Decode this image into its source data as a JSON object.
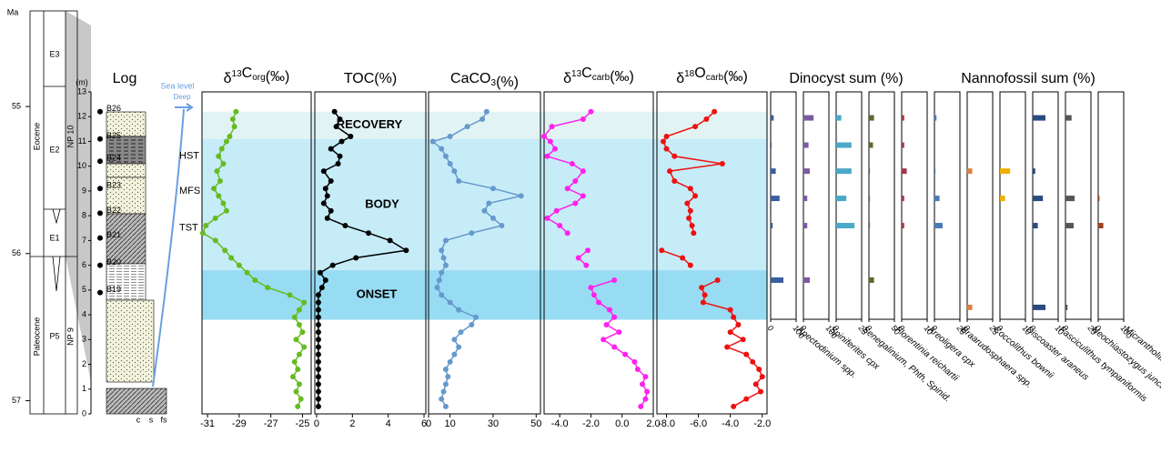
{
  "chart_data": {
    "type": "stratigraphic-composite",
    "ma_label": "Ma",
    "ma_lim": [
      54.35,
      57.09
    ],
    "ma_ticks": [
      55,
      56,
      57
    ],
    "units": {
      "epochs": [
        "Eocene",
        "Paleocene"
      ],
      "zones": [
        "E3",
        "E2",
        "E1",
        "P5"
      ],
      "nannozones": [
        "NP 10",
        "NP 9"
      ]
    },
    "log_title": "Log",
    "depth_label": "(m)",
    "depth_lim": [
      0,
      13
    ],
    "depth_ticks": [
      0,
      1,
      2,
      3,
      4,
      5,
      6,
      7,
      8,
      9,
      10,
      11,
      12,
      13
    ],
    "grain_sizes": [
      "c",
      "s",
      "fs"
    ],
    "samples": [
      {
        "name": "B26",
        "depth": 12.2
      },
      {
        "name": "B25",
        "depth": 11.1
      },
      {
        "name": "B24",
        "depth": 10.2
      },
      {
        "name": "B23",
        "depth": 9.1
      },
      {
        "name": "B22",
        "depth": 8.1
      },
      {
        "name": "B21",
        "depth": 7.1
      },
      {
        "name": "B20",
        "depth": 6.0
      },
      {
        "name": "B19",
        "depth": 4.9
      }
    ],
    "systems_tracts": [
      {
        "name": "HST",
        "depth": 10.4
      },
      {
        "name": "MFS",
        "depth": 9.0
      },
      {
        "name": "TST",
        "depth": 7.5
      }
    ],
    "sea_level_label": "Sea level",
    "deep_label": "Deep",
    "bands": [
      {
        "name": "RECOVERY",
        "range": [
          11.1,
          12.2
        ],
        "color": "#e2f3f4"
      },
      {
        "name": "BODY",
        "range": [
          5.8,
          11.1
        ],
        "color": "#c6ecf8"
      },
      {
        "name": "ONSET",
        "range": [
          3.8,
          5.8
        ],
        "color": "#98dcf3"
      }
    ],
    "depths": [
      12.2,
      11.9,
      11.6,
      11.2,
      11.0,
      10.7,
      10.4,
      10.1,
      9.8,
      9.4,
      9.1,
      8.8,
      8.5,
      8.2,
      7.9,
      7.6,
      7.3,
      7.0,
      6.6,
      6.3,
      6.0,
      5.7,
      5.4,
      5.1,
      4.8,
      4.5,
      4.2,
      3.9,
      3.6,
      3.3,
      3.0,
      2.7,
      2.4,
      2.1,
      1.8,
      1.5,
      1.2,
      0.9,
      0.6,
      0.3
    ],
    "panels": [
      {
        "title": [
          {
            "text": "δ"
          },
          {
            "text": "13",
            "style": "sup"
          },
          {
            "text": "C"
          },
          {
            "text": "org",
            "style": "sub"
          },
          {
            "text": "(‰)"
          }
        ],
        "color": "#66bb22",
        "xlim": [
          -31.35,
          -24.45
        ],
        "xticks": [
          -31,
          -29,
          -27,
          -25
        ],
        "values": [
          -29.2,
          -29.4,
          -29.3,
          -29.6,
          -29.8,
          -30.1,
          -30.3,
          -30.0,
          -30.4,
          -30.2,
          -30.6,
          -30.3,
          -30.0,
          -29.8,
          -30.5,
          -31.1,
          -31.3,
          -30.5,
          -29.9,
          -29.5,
          -29.0,
          -28.5,
          -28.0,
          -27.2,
          -25.8,
          -24.9,
          -25.2,
          -25.5,
          -25.2,
          -25.0,
          -25.4,
          -24.9,
          -25.2,
          -25.5,
          -25.3,
          -25.6,
          -25.2,
          -25.4,
          -25.1,
          -25.3
        ]
      },
      {
        "title": [
          {
            "text": "TOC(%)"
          }
        ],
        "color": "#000000",
        "xlim": [
          -0.1,
          6.1
        ],
        "xticks": [
          0,
          2,
          4,
          6
        ],
        "values": [
          1.0,
          1.3,
          1.1,
          1.9,
          1.4,
          0.8,
          1.3,
          1.2,
          0.4,
          0.8,
          0.5,
          0.6,
          0.4,
          0.8,
          0.6,
          1.6,
          2.9,
          4.1,
          5.0,
          2.2,
          0.9,
          0.2,
          0.5,
          0.3,
          0.1,
          0.1,
          0.1,
          0.1,
          0.1,
          0.1,
          0.1,
          0.1,
          0.1,
          0.1,
          0.1,
          0.1,
          0.1,
          0.1,
          0.1,
          0.1
        ]
      },
      {
        "title": [
          {
            "text": "CaCO"
          },
          {
            "text": "3",
            "style": "sub"
          },
          {
            "text": "(%)"
          }
        ],
        "color": "#6699cc",
        "xlim": [
          0,
          52
        ],
        "xticks": [
          0,
          10,
          30,
          50
        ],
        "values": [
          27,
          25,
          18,
          10,
          2,
          6,
          8,
          10,
          12,
          14,
          30,
          43,
          28,
          26,
          30,
          34,
          20,
          8,
          6,
          7,
          8,
          6,
          5,
          4,
          6,
          10,
          14,
          22,
          20,
          15,
          12,
          14,
          12,
          10,
          8,
          9,
          8,
          7,
          6,
          8
        ]
      },
      {
        "title": [
          {
            "text": "δ"
          },
          {
            "text": "13",
            "style": "sup"
          },
          {
            "text": "C"
          },
          {
            "text": "carb",
            "style": "sub"
          },
          {
            "text": "(‰)"
          }
        ],
        "color": "#ff22ee",
        "xlim": [
          -5,
          2
        ],
        "xticks": [
          {
            "value": -4,
            "label": "-4.0"
          },
          {
            "value": -2,
            "label": "-2.0"
          },
          {
            "value": 0,
            "label": "0.0"
          },
          {
            "value": 2,
            "label": "2.0"
          }
        ],
        "values": [
          -2.0,
          -2.5,
          -4.5,
          -5.0,
          -4.6,
          -4.3,
          -4.8,
          -3.2,
          -2.5,
          -3.0,
          -3.5,
          -2.5,
          -3.0,
          -4.2,
          -4.8,
          -4.0,
          -3.5,
          null,
          -2.2,
          -2.8,
          -2.3,
          null,
          -0.5,
          -2.0,
          -1.8,
          -1.5,
          -0.8,
          -0.5,
          -1.0,
          -0.2,
          -1.2,
          -0.5,
          0.2,
          0.8,
          1.0,
          1.5,
          1.3,
          1.6,
          1.5,
          1.2
        ]
      },
      {
        "title": [
          {
            "text": "δ"
          },
          {
            "text": "18",
            "style": "sup"
          },
          {
            "text": "O"
          },
          {
            "text": "carb",
            "style": "sub"
          },
          {
            "text": "(‰)"
          }
        ],
        "color": "#ee1111",
        "xlim": [
          -8.6,
          -1.7
        ],
        "xticks": [
          {
            "value": -8,
            "label": "-8.0"
          },
          {
            "value": -6,
            "label": "-6.0"
          },
          {
            "value": -4,
            "label": "-4.0"
          },
          {
            "value": -2,
            "label": "-2.0"
          }
        ],
        "values": [
          -5.0,
          -5.5,
          -6.2,
          -8.0,
          -8.2,
          -8.0,
          -7.5,
          -4.5,
          -7.8,
          -7.5,
          -6.5,
          -6.2,
          -6.7,
          -6.5,
          -6.6,
          -6.4,
          -6.3,
          null,
          -8.3,
          -7.0,
          -6.5,
          null,
          -4.8,
          -5.8,
          -5.6,
          -5.7,
          -4.0,
          -3.8,
          -3.5,
          -4.0,
          -3.2,
          -4.2,
          -3.0,
          -2.6,
          -2.2,
          -2.0,
          -2.4,
          -2.1,
          -3.0,
          -3.8
        ]
      }
    ],
    "fossil_depths": [
      11.95,
      10.85,
      9.8,
      8.7,
      7.6,
      5.4,
      4.3
    ],
    "fossil_groups": [
      {
        "title": "Dinocyst sum (%)",
        "taxa": [
          {
            "name": "Apectodinium spp.",
            "color": "#3a5fa0",
            "xlim": [
              0,
              100
            ],
            "xticks": [
              0,
              100
            ],
            "values": [
              12,
              4,
              20,
              35,
              8,
              50,
              0
            ]
          },
          {
            "name": "Spiniferites cpx",
            "color": "#7a5aa0",
            "xlim": [
              0,
              100
            ],
            "xticks": [
              0,
              100
            ],
            "values": [
              40,
              20,
              25,
              15,
              15,
              25,
              0
            ]
          },
          {
            "name": "Senegalinium, Phth, Spinid.",
            "color": "#4aa8c8",
            "xlim": [
              0,
              25
            ],
            "xticks": [
              0,
              25
            ],
            "values": [
              5,
              15,
              15,
              10,
              18,
              0,
              0
            ]
          },
          {
            "name": "Florentinia reichartii",
            "color": "#5a6a2a",
            "xlim": [
              0,
              50
            ],
            "xticks": [
              0,
              50
            ],
            "values": [
              10,
              8,
              2,
              2,
              2,
              10,
              0
            ]
          },
          {
            "name": "Areoligera cpx",
            "color": "#a03a4a",
            "xlim": [
              0,
              10
            ],
            "xticks": [
              0,
              10
            ],
            "values": [
              1,
              1,
              2,
              1,
              1,
              0,
              0
            ]
          }
        ]
      },
      {
        "title": "Nannofossil sum (%)",
        "taxa": [
          {
            "name": "Braarudosphaera spp.",
            "color": "#4a7ab8",
            "xlim": [
              0,
              25
            ],
            "xticks": [
              0,
              25
            ],
            "values": [
              2,
              0,
              1,
              5,
              8,
              0,
              0
            ]
          },
          {
            "name": "Coccolithus bownii",
            "color": "#e08040",
            "xlim": [
              0,
              25
            ],
            "xticks": [
              0,
              25
            ],
            "values": [
              0,
              0,
              5,
              0,
              0,
              0,
              5
            ]
          },
          {
            "name": "Discoaster araneus",
            "color": "#f0b000",
            "xlim": [
              0,
              10
            ],
            "xticks": [
              0,
              10
            ],
            "values": [
              0,
              0,
              4,
              2,
              0,
              0,
              0
            ]
          },
          {
            "name": "Fasciculithus tympaniformis",
            "color": "#2a4a80",
            "xlim": [
              0,
              10
            ],
            "xticks": [
              0,
              10
            ],
            "values": [
              5,
              0,
              1,
              4,
              2,
              0,
              5
            ]
          },
          {
            "name": "Neochiastozygus junctus",
            "color": "#555555",
            "xlim": [
              0,
              25
            ],
            "xticks": [
              0,
              25
            ],
            "values": [
              6,
              0,
              0,
              9,
              8,
              0,
              2
            ]
          },
          {
            "name": "Micrantholithus spp.",
            "color": "#a04020",
            "xlim": [
              0,
              100
            ],
            "xticks": [
              0,
              100
            ],
            "values": [
              0,
              0,
              0,
              5,
              20,
              0,
              0
            ]
          }
        ]
      }
    ]
  }
}
